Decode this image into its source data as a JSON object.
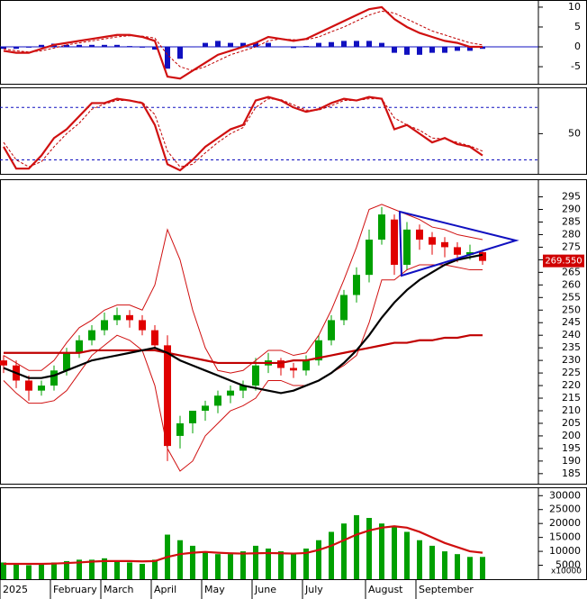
{
  "chart_data": [
    {
      "type": "line",
      "ylim": [
        -9.3,
        11.8
      ],
      "yticks": [
        10,
        5,
        0,
        -5
      ],
      "zero_line": true,
      "series": [
        {
          "type": "bar",
          "color": "#1010c0",
          "values": [
            -0.5,
            -0.5,
            -0.2,
            0.5,
            0.8,
            0.5,
            0.5,
            0.5,
            0.5,
            0.5,
            0.2,
            -0.2,
            -0.7,
            -5.5,
            -3,
            0,
            1,
            1.5,
            1,
            1,
            1,
            1,
            0,
            -0.3,
            0.2,
            1,
            1.2,
            1.5,
            1.5,
            1.5,
            1,
            -1.5,
            -2,
            -2,
            -1.5,
            -1.5,
            -1,
            -1,
            -0.5
          ]
        },
        {
          "type": "dashed-line",
          "color": "#c00000",
          "values": [
            -0.5,
            -1,
            -1.3,
            -1,
            -0.3,
            0.5,
            1,
            1.5,
            2,
            2.5,
            2.8,
            2.7,
            2.2,
            -2,
            -5,
            -6,
            -5,
            -3.5,
            -2,
            -1,
            0,
            1.5,
            2,
            1.8,
            1.8,
            2.5,
            3.8,
            5,
            6.5,
            8,
            9,
            8.5,
            7,
            5.5,
            4,
            3,
            2,
            1,
            0.5
          ]
        },
        {
          "type": "line",
          "color": "#d01010",
          "values": [
            -1,
            -1.5,
            -1.5,
            -0.5,
            0.5,
            1,
            1.5,
            2,
            2.5,
            3,
            3,
            2.5,
            1.5,
            -7.5,
            -8,
            -6,
            -4,
            -2,
            -1,
            0,
            1,
            2.5,
            2,
            1.5,
            2,
            3.5,
            5,
            6.5,
            8,
            9.5,
            10,
            7,
            5,
            3.5,
            2.5,
            1.5,
            1,
            0,
            0
          ]
        }
      ]
    },
    {
      "type": "line",
      "ylim": [
        4,
        103
      ],
      "yticks": [
        50
      ],
      "reference_lines": [
        80,
        20
      ],
      "series": [
        {
          "type": "dashed-line",
          "color": "#c00000",
          "values": [
            40,
            20,
            12,
            18,
            35,
            50,
            62,
            78,
            84,
            88,
            88,
            86,
            72,
            30,
            12,
            15,
            28,
            40,
            50,
            57,
            80,
            90,
            89,
            83,
            77,
            77,
            82,
            88,
            88,
            90,
            90,
            68,
            60,
            54,
            45,
            44,
            40,
            36,
            30
          ]
        },
        {
          "type": "line",
          "color": "#d01010",
          "values": [
            35,
            10,
            10,
            25,
            45,
            55,
            70,
            85,
            85,
            90,
            88,
            85,
            60,
            15,
            8,
            20,
            35,
            45,
            55,
            60,
            88,
            92,
            88,
            80,
            75,
            78,
            85,
            90,
            88,
            92,
            90,
            55,
            60,
            50,
            40,
            45,
            38,
            35,
            25
          ]
        }
      ]
    },
    {
      "type": "candlestick",
      "ylim": [
        181,
        302
      ],
      "yticks": [
        185,
        190,
        195,
        200,
        205,
        210,
        215,
        220,
        225,
        230,
        235,
        240,
        245,
        250,
        255,
        260,
        265,
        270,
        275,
        280,
        285,
        290,
        295
      ],
      "up_color": "#00a000",
      "down_color": "#e00000",
      "open": [
        230,
        228,
        222,
        218,
        220,
        226,
        233,
        238,
        242,
        246,
        248,
        246,
        242,
        236,
        200,
        205,
        210,
        212,
        216,
        218,
        220,
        228,
        230,
        227,
        226,
        230,
        238,
        246,
        256,
        264,
        278,
        286,
        268,
        282,
        279,
        277,
        275,
        272,
        273
      ],
      "high": [
        232,
        230,
        224,
        222,
        228,
        235,
        240,
        244,
        249,
        251,
        250,
        248,
        244,
        240,
        208,
        210,
        214,
        218,
        220,
        222,
        231,
        233,
        231,
        229,
        232,
        240,
        248,
        258,
        267,
        282,
        291,
        288,
        285,
        284,
        281,
        279,
        277,
        276,
        274
      ],
      "low": [
        225,
        219,
        214,
        216,
        218,
        224,
        231,
        236,
        240,
        244,
        243,
        240,
        234,
        190,
        195,
        201,
        206,
        209,
        213,
        215,
        218,
        225,
        224,
        223,
        224,
        228,
        236,
        244,
        253,
        261,
        276,
        264,
        266,
        274,
        272,
        271,
        269,
        270,
        268
      ],
      "close": [
        228,
        222,
        218,
        220,
        226,
        233,
        238,
        242,
        246,
        248,
        246,
        242,
        236,
        196,
        205,
        210,
        212,
        216,
        218,
        220,
        228,
        230,
        227,
        226,
        230,
        238,
        246,
        256,
        264,
        278,
        288,
        268,
        282,
        278,
        276,
        275,
        272,
        273,
        269.55
      ],
      "series": [
        {
          "type": "thin-line",
          "color": "#d01010",
          "values": [
            232,
            229,
            226,
            226,
            230,
            237,
            243,
            246,
            250,
            252,
            252,
            250,
            260,
            282,
            270,
            250,
            235,
            226,
            225,
            226,
            230,
            234,
            234,
            232,
            233,
            240,
            250,
            262,
            275,
            290,
            292,
            290,
            288,
            286,
            283,
            282,
            280,
            279,
            278
          ]
        },
        {
          "type": "thin-line",
          "color": "#d01010",
          "values": [
            222,
            217,
            213,
            213,
            214,
            218,
            225,
            232,
            236,
            240,
            238,
            234,
            220,
            195,
            186,
            190,
            200,
            205,
            210,
            212,
            215,
            222,
            222,
            220,
            220,
            222,
            225,
            228,
            232,
            245,
            262,
            262,
            266,
            268,
            268,
            268,
            267,
            266,
            266
          ]
        },
        {
          "type": "line",
          "color": "#c00000",
          "values": [
            233,
            233,
            233,
            233,
            233,
            233,
            233,
            234,
            234,
            234,
            234,
            234,
            234,
            233,
            232,
            231,
            230,
            229,
            229,
            229,
            229,
            229,
            229,
            230,
            230,
            231,
            232,
            233,
            234,
            235,
            236,
            237,
            237,
            238,
            238,
            239,
            239,
            240,
            240
          ]
        },
        {
          "type": "line",
          "color": "#000000",
          "values": [
            227,
            225,
            223,
            223,
            224,
            226,
            228,
            230,
            231,
            232,
            233,
            234,
            235,
            233,
            230,
            228,
            226,
            224,
            222,
            220,
            219,
            218,
            217,
            218,
            220,
            222,
            225,
            229,
            234,
            240,
            247,
            253,
            258,
            262,
            265,
            268,
            270,
            271,
            272
          ]
        }
      ],
      "last_price": {
        "value": 269.55,
        "label": "269.550"
      }
    },
    {
      "type": "bar",
      "ylim": [
        0,
        33000
      ],
      "yticks": [
        5000,
        10000,
        15000,
        20000,
        25000,
        30000
      ],
      "unit_label": "x10000",
      "color": "#00a000",
      "categories": [
        "2025",
        null,
        null,
        null,
        "February",
        null,
        null,
        null,
        "March",
        null,
        null,
        null,
        "April",
        null,
        null,
        null,
        "May",
        null,
        null,
        null,
        "June",
        null,
        null,
        null,
        "July",
        null,
        null,
        null,
        null,
        "August",
        null,
        null,
        null,
        "September",
        null,
        null,
        null,
        null,
        null
      ],
      "values": [
        6000,
        5500,
        5000,
        5500,
        6000,
        6500,
        7000,
        7000,
        7500,
        6500,
        6000,
        5500,
        7000,
        16000,
        14000,
        12000,
        10000,
        9000,
        9000,
        10000,
        12000,
        11000,
        10000,
        9000,
        11000,
        14000,
        17000,
        20000,
        23000,
        22000,
        20000,
        19000,
        17000,
        14000,
        12000,
        10000,
        9000,
        8000,
        8000
      ],
      "series": [
        {
          "type": "line",
          "color": "#d01010",
          "values": [
            5500,
            5500,
            5500,
            5500,
            5600,
            5800,
            6000,
            6300,
            6500,
            6500,
            6500,
            6400,
            6500,
            8000,
            9000,
            9500,
            9800,
            9500,
            9300,
            9200,
            9300,
            9400,
            9300,
            9200,
            9400,
            10500,
            12000,
            14000,
            16000,
            17500,
            18500,
            19000,
            18500,
            17000,
            15000,
            13000,
            11500,
            10000,
            9500
          ]
        }
      ]
    }
  ]
}
